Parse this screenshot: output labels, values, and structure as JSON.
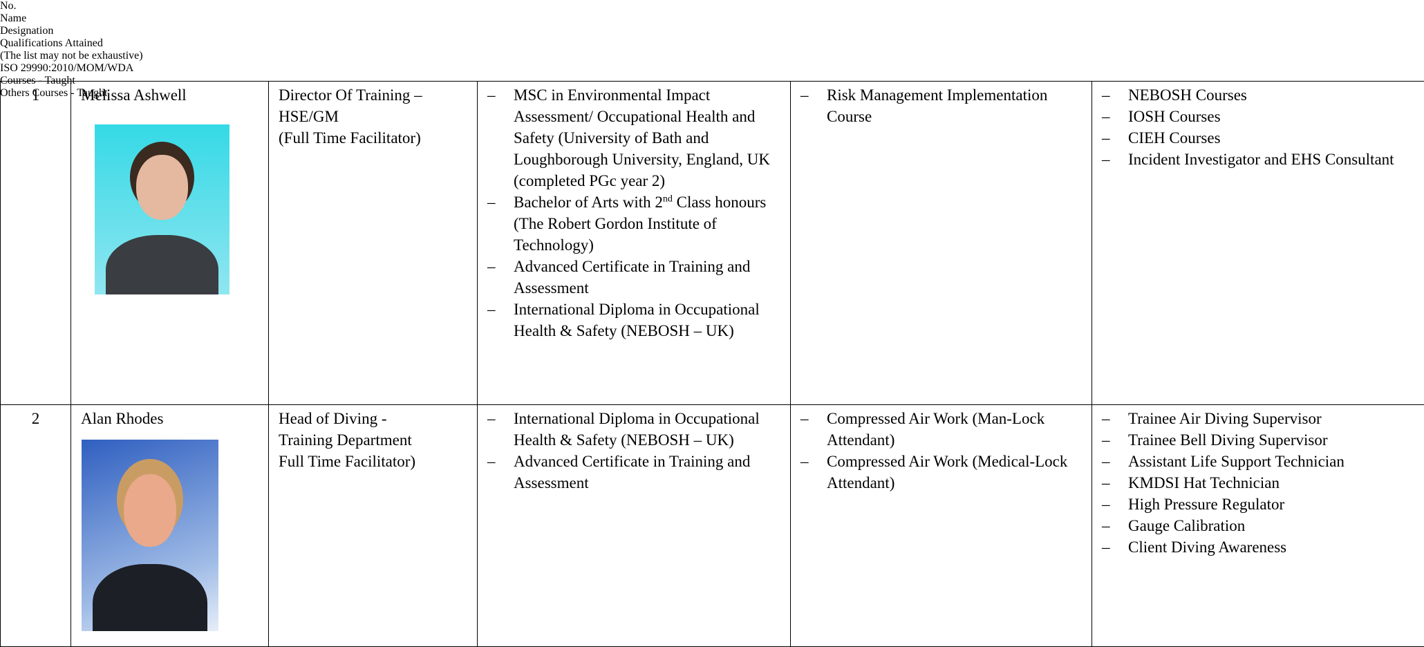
{
  "header": {
    "columns": [
      {
        "lines": [
          "No."
        ]
      },
      {
        "lines": [
          "Name"
        ]
      },
      {
        "lines": [
          "Designation"
        ]
      },
      {
        "lines": [
          "Qualifications Attained",
          "(The list may not be exhaustive)"
        ]
      },
      {
        "lines": [
          "ISO 29990:2010/MOM/WDA",
          "Courses - Taught"
        ]
      },
      {
        "lines": [
          "Others Courses - Taught"
        ]
      }
    ]
  },
  "table": {
    "rows": [
      {
        "no": "1",
        "name": "Melissa Ashwell",
        "designation": [
          "Director Of Training –",
          "HSE/GM",
          "(Full Time Facilitator)"
        ],
        "qualifications": [
          {
            "text": "MSC in Environmental Impact Assessment/ Occupational Health and Safety (University of Bath and Loughborough University, England, UK (completed PGc year 2)"
          },
          {
            "text": "Bachelor of Arts with 2",
            "sup": "nd",
            "rest": " Class honours (The Robert Gordon Institute of Technology)"
          },
          {
            "text": "Advanced Certificate in Training and Assessment"
          },
          {
            "text": "International Diploma in Occupational Health & Safety (NEBOSH – UK)"
          }
        ],
        "iso": [
          "Risk Management Implementation Course"
        ],
        "others": [
          "NEBOSH Courses",
          "IOSH Courses",
          "CIEH Courses",
          "Incident Investigator and EHS Consultant"
        ]
      },
      {
        "no": "2",
        "name": "Alan Rhodes",
        "designation": [
          "Head of Diving -",
          "Training Department",
          "Full Time Facilitator)"
        ],
        "qualifications": [
          {
            "text": "International Diploma in Occupational Health & Safety (NEBOSH – UK)"
          },
          {
            "text": "Advanced Certificate in Training and Assessment"
          }
        ],
        "iso": [
          "Compressed Air Work (Man-Lock Attendant)",
          "Compressed Air Work (Medical-Lock Attendant)"
        ],
        "others": [
          "Trainee Air Diving Supervisor",
          "Trainee Bell Diving Supervisor",
          "Assistant Life Support Technician",
          "KMDSI Hat Technician",
          "High Pressure Regulator",
          "Gauge Calibration",
          "Client Diving Awareness"
        ]
      }
    ]
  }
}
